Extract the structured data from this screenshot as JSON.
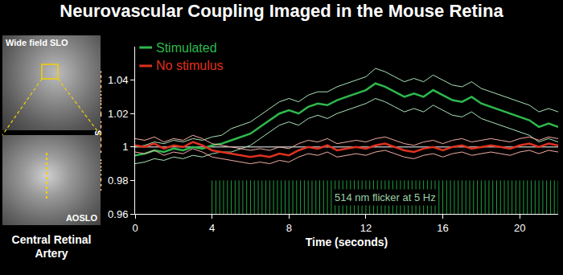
{
  "chart_data": {
    "type": "line",
    "title": "Neurovascular Coupling Imaged in the Mouse Retina",
    "x_label": "Time (seconds)",
    "y_label": "Norm. Vessel Diameter",
    "x": [
      0,
      0.5,
      1,
      1.5,
      2,
      2.5,
      3,
      3.5,
      4,
      4.5,
      5,
      5.5,
      6,
      6.5,
      7,
      7.5,
      8,
      8.5,
      9,
      9.5,
      10,
      10.5,
      11,
      11.5,
      12,
      12.5,
      13,
      13.5,
      14,
      14.5,
      15,
      15.5,
      16,
      16.5,
      17,
      17.5,
      18,
      18.5,
      19,
      19.5,
      20,
      20.5,
      21,
      21.5,
      22
    ],
    "series": [
      {
        "name": "Stimulated",
        "color": "#2db84d",
        "values": [
          0.995,
          0.996,
          0.998,
          0.997,
          0.999,
          0.998,
          1.0,
          0.999,
          1.001,
          1.002,
          1.004,
          1.006,
          1.008,
          1.012,
          1.016,
          1.02,
          1.022,
          1.02,
          1.024,
          1.026,
          1.025,
          1.028,
          1.03,
          1.032,
          1.034,
          1.038,
          1.036,
          1.033,
          1.03,
          1.032,
          1.03,
          1.034,
          1.031,
          1.028,
          1.027,
          1.03,
          1.026,
          1.024,
          1.022,
          1.02,
          1.018,
          1.016,
          1.012,
          1.014,
          1.012
        ],
        "upper": [
          1.0,
          1.001,
          1.003,
          1.002,
          1.004,
          1.003,
          1.005,
          1.004,
          1.006,
          1.007,
          1.011,
          1.013,
          1.015,
          1.019,
          1.023,
          1.027,
          1.029,
          1.027,
          1.031,
          1.033,
          1.033,
          1.036,
          1.038,
          1.04,
          1.042,
          1.047,
          1.045,
          1.042,
          1.039,
          1.041,
          1.039,
          1.043,
          1.04,
          1.037,
          1.036,
          1.039,
          1.035,
          1.033,
          1.031,
          1.029,
          1.027,
          1.025,
          1.021,
          1.023,
          1.021
        ],
        "lower": [
          0.99,
          0.991,
          0.993,
          0.992,
          0.994,
          0.993,
          0.995,
          0.994,
          0.996,
          0.997,
          0.997,
          0.999,
          1.001,
          1.005,
          1.009,
          1.013,
          1.015,
          1.013,
          1.017,
          1.019,
          1.017,
          1.02,
          1.022,
          1.024,
          1.026,
          1.029,
          1.027,
          1.024,
          1.021,
          1.023,
          1.021,
          1.025,
          1.022,
          1.019,
          1.018,
          1.021,
          1.017,
          1.015,
          1.013,
          1.011,
          1.009,
          1.007,
          1.003,
          1.005,
          1.003
        ]
      },
      {
        "name": "No stimulus",
        "color": "#e0301e",
        "values": [
          1.001,
          1.0,
          1.002,
          0.999,
          1.001,
          1.0,
          1.003,
          1.001,
          0.998,
          0.997,
          0.996,
          0.995,
          0.994,
          0.995,
          0.994,
          0.996,
          0.995,
          0.998,
          1.0,
          0.999,
          1.001,
          0.998,
          0.999,
          1.0,
          0.999,
          1.001,
          1.002,
          1.0,
          0.998,
          0.997,
          0.999,
          1.0,
          0.998,
          1.0,
          1.001,
          0.999,
          1.0,
          1.001,
          1.0,
          0.999,
          1.001,
          1.002,
          1.0,
          1.002,
          1.001
        ],
        "upper": [
          1.005,
          1.004,
          1.006,
          1.003,
          1.005,
          1.004,
          1.007,
          1.005,
          1.002,
          1.001,
          1.0,
          0.999,
          0.998,
          0.999,
          0.998,
          1.0,
          0.999,
          1.002,
          1.004,
          1.003,
          1.005,
          1.002,
          1.003,
          1.004,
          1.003,
          1.005,
          1.006,
          1.004,
          1.002,
          1.001,
          1.003,
          1.004,
          1.002,
          1.004,
          1.005,
          1.003,
          1.004,
          1.005,
          1.004,
          1.003,
          1.005,
          1.006,
          1.004,
          1.006,
          1.005
        ],
        "lower": [
          0.997,
          0.996,
          0.998,
          0.995,
          0.997,
          0.996,
          0.999,
          0.997,
          0.994,
          0.993,
          0.992,
          0.991,
          0.99,
          0.991,
          0.99,
          0.992,
          0.991,
          0.994,
          0.996,
          0.995,
          0.997,
          0.994,
          0.995,
          0.996,
          0.995,
          0.997,
          0.998,
          0.996,
          0.994,
          0.993,
          0.995,
          0.996,
          0.994,
          0.996,
          0.997,
          0.995,
          0.996,
          0.997,
          0.996,
          0.995,
          0.997,
          0.998,
          0.996,
          0.998,
          0.997
        ]
      }
    ],
    "reference_value": 1,
    "stimulus": {
      "label": "514 nm flicker at 5 Hz",
      "start": 4,
      "end": 22,
      "frequency": 5,
      "ymin": 0.96,
      "ymax": 0.98,
      "color": "#1e9e3e"
    },
    "xlim": [
      0,
      22
    ],
    "xticks": [
      0,
      4,
      8,
      12,
      16,
      20
    ],
    "ylim": [
      0.96,
      1.06
    ],
    "yticks": [
      0.96,
      0.98,
      1,
      1.02,
      1.04
    ],
    "grid": false,
    "legend": "upper left",
    "images": [
      {
        "label": "Wide field SLO"
      },
      {
        "label": "AOSLO"
      }
    ],
    "caption": "Central Retinal Artery"
  }
}
